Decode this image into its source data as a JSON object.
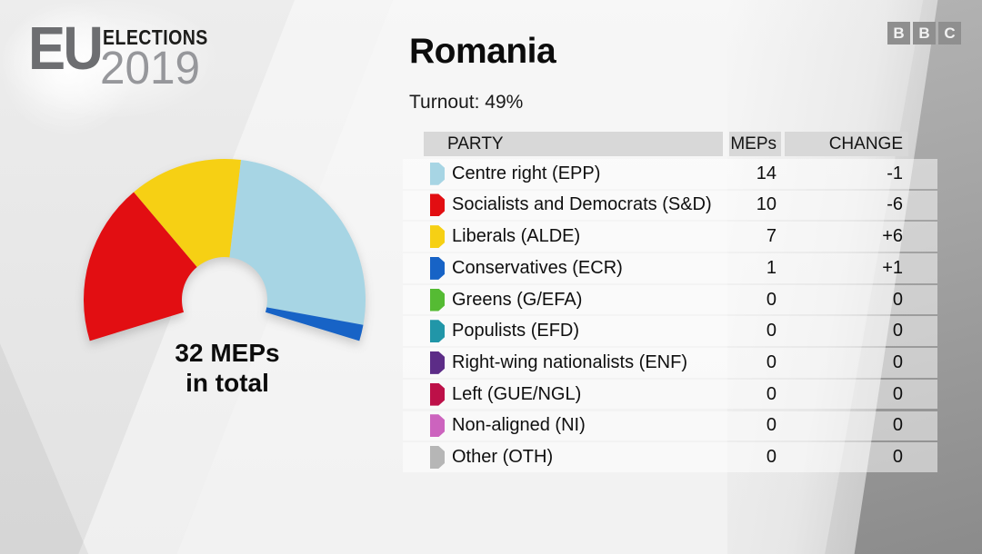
{
  "header": {
    "logo": {
      "eu": "EU",
      "elections": "ELECTIONS",
      "year": "2019"
    },
    "bbc_blocks": [
      "B",
      "B",
      "C"
    ]
  },
  "page": {
    "title": "Romania",
    "turnout": "Turnout: 49%"
  },
  "chart_data": {
    "type": "hemicycle_donut",
    "total_meps": 32,
    "center_label_line1": "32 MEPs",
    "center_label_line2": "in total",
    "arc_span_degrees": 214,
    "grid": false,
    "legend_position": "none",
    "segments_left_to_right": [
      {
        "party": "Socialists and Democrats (S&D)",
        "abbr": "SD",
        "seats": 10,
        "color": "#e20e12"
      },
      {
        "party": "Liberals (ALDE)",
        "abbr": "ALDE",
        "seats": 7,
        "color": "#f6d014"
      },
      {
        "party": "Centre right (EPP)",
        "abbr": "EPP",
        "seats": 14,
        "color": "#a7d5e4"
      },
      {
        "party": "Conservatives (ECR)",
        "abbr": "ECR",
        "seats": 1,
        "color": "#1763c6"
      }
    ]
  },
  "table": {
    "columns": [
      "PARTY",
      "MEPs",
      "CHANGE"
    ],
    "rows": [
      {
        "party": "Centre right (EPP)",
        "meps": "14",
        "change": "-1",
        "color": "#a7d5e4"
      },
      {
        "party": "Socialists and Democrats (S&D)",
        "meps": "10",
        "change": "-6",
        "color": "#e20e12"
      },
      {
        "party": "Liberals (ALDE)",
        "meps": "7",
        "change": "+6",
        "color": "#f6d014"
      },
      {
        "party": "Conservatives (ECR)",
        "meps": "1",
        "change": "+1",
        "color": "#1763c6"
      },
      {
        "party": "Greens (G/EFA)",
        "meps": "0",
        "change": "0",
        "color": "#55bb33"
      },
      {
        "party": "Populists (EFD)",
        "meps": "0",
        "change": "0",
        "color": "#2196a8"
      },
      {
        "party": "Right-wing nationalists (ENF)",
        "meps": "0",
        "change": "0",
        "color": "#5c2c87"
      },
      {
        "party": "Left (GUE/NGL)",
        "meps": "0",
        "change": "0",
        "color": "#bd1048"
      },
      {
        "party": "Non-aligned (NI)",
        "meps": "0",
        "change": "0",
        "color": "#cc63be"
      },
      {
        "party": "Other (OTH)",
        "meps": "0",
        "change": "0",
        "color": "#b6b6b6"
      }
    ]
  }
}
